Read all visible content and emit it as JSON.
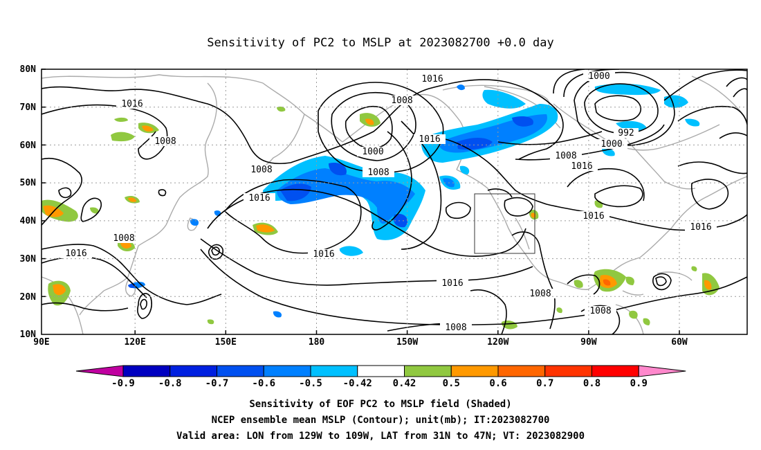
{
  "title": "Sensitivity of PC2 to MSLP at 2023082700 +0.0 day",
  "lat_labels": [
    "80N",
    "70N",
    "60N",
    "50N",
    "40N",
    "30N",
    "20N",
    "10N"
  ],
  "lon_labels": [
    "90E",
    "120E",
    "150E",
    "180",
    "150W",
    "120W",
    "90W",
    "60W"
  ],
  "contour_labels": [
    "1016",
    "1008",
    "1016",
    "1000",
    "1008",
    "1016",
    "1008",
    "1000",
    "992",
    "1000",
    "1008",
    "1016",
    "1016",
    "1008",
    "1016",
    "1016",
    "1008",
    "1016",
    "1016",
    "1016",
    "1008",
    "1008",
    "1008"
  ],
  "colorbar": {
    "ticks": [
      "-0.9",
      "-0.8",
      "-0.7",
      "-0.6",
      "-0.5",
      "-0.42",
      "0.42",
      "0.5",
      "0.6",
      "0.7",
      "0.8",
      "0.9"
    ],
    "colors": [
      "#c000a0",
      "#0000c0",
      "#0020e0",
      "#0050f0",
      "#0080ff",
      "#00c0ff",
      "#ffffff",
      "#90c840",
      "#ff9900",
      "#ff6600",
      "#ff3300",
      "#ff0000",
      "#ff88cc"
    ]
  },
  "captions": [
    "Sensitivity of EOF PC2 to MSLP field (Shaded)",
    "NCEP ensemble mean MSLP (Contour); unit(mb); IT:2023082700",
    "Valid area: LON from 129W to 109W, LAT from 31N to 47N; VT: 2023082900"
  ]
}
